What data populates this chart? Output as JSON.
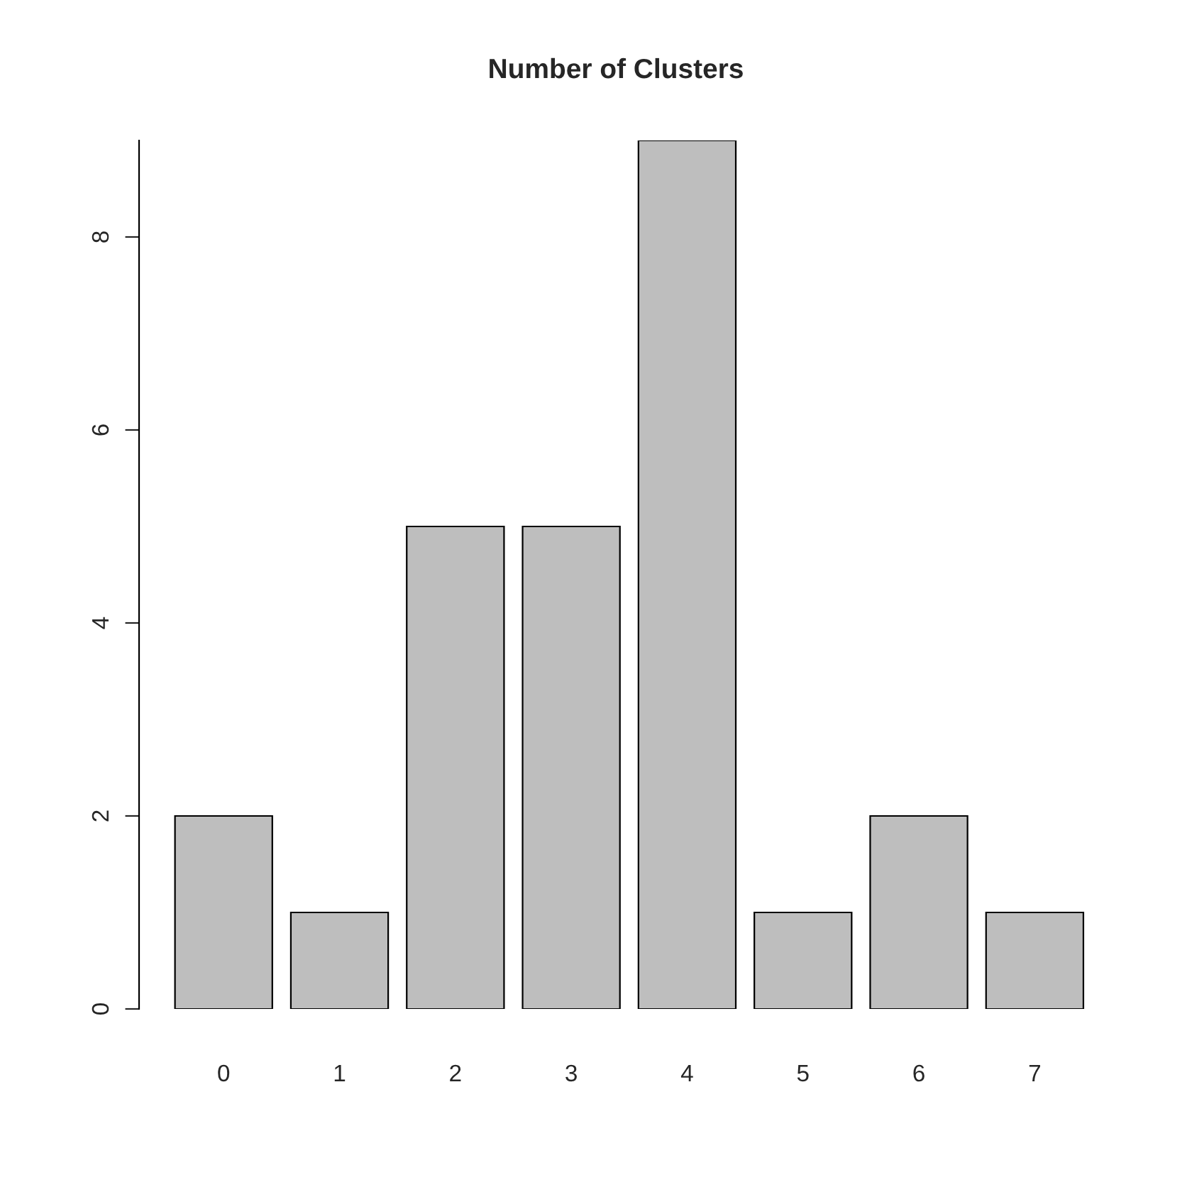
{
  "chart_data": {
    "type": "bar",
    "title": "Number of Clusters",
    "categories": [
      "0",
      "1",
      "2",
      "3",
      "4",
      "5",
      "6",
      "7"
    ],
    "values": [
      2,
      1,
      5,
      5,
      9,
      1,
      2,
      1
    ],
    "color": "#bebebe",
    "ylim": [
      0,
      9
    ],
    "yticks": [
      0,
      2,
      4,
      6,
      8
    ],
    "grid": false
  }
}
